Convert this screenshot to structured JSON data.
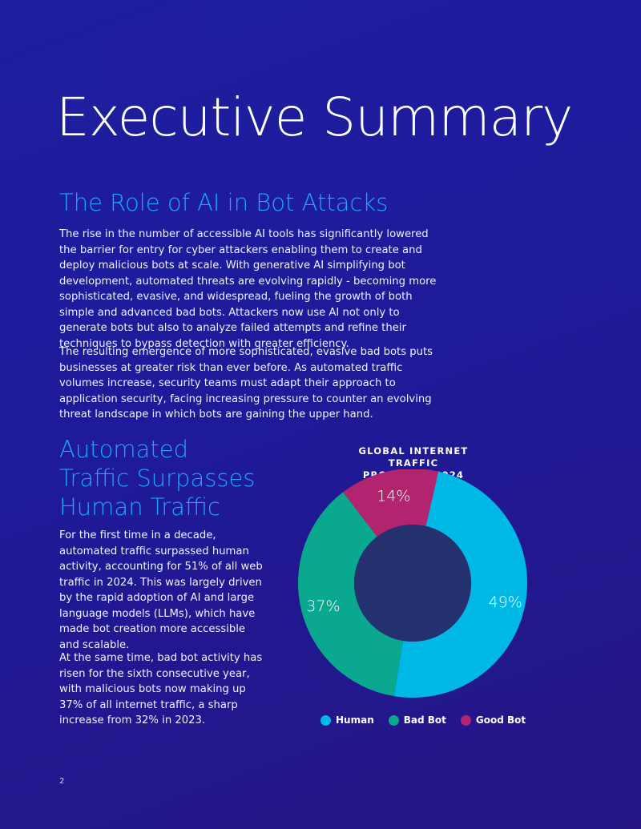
{
  "header": {
    "title": "Executive Summary"
  },
  "section1": {
    "heading": "The Role of AI in Bot Attacks",
    "p1": "The rise in the number of accessible AI tools has significantly lowered the barrier for entry for cyber attackers enabling them to create and deploy malicious bots at scale. With generative AI simplifying bot development, automated threats are evolving rapidly - becoming more sophisticated, evasive, and widespread, fueling the growth of both simple and advanced bad bots. Attackers now use AI not only to generate bots but also to analyze failed attempts and refine their techniques to bypass detection with greater efficiency.",
    "p2": "The resulting emergence of more sophisticated, evasive bad bots puts businesses at greater risk than ever before. As automated traffic volumes increase, security teams must adapt their approach to application security, facing increasing pressure to counter an evolving threat landscape in which bots are gaining the upper hand."
  },
  "section2": {
    "heading_lines": [
      "Automated",
      "Traffic Surpasses",
      "Human Traffic"
    ],
    "p1": "For the first time in a decade, automated traffic surpassed human activity, accounting for 51% of all web traffic in 2024. This was largely driven by the rapid adoption of AI and large language models (LLMs), which have made bot creation more accessible and scalable.",
    "p2": "At the same time, bad bot activity has risen for the sixth consecutive year, with malicious bots now making up 37% of all internet traffic, a sharp increase from 32% in 2023."
  },
  "chart_data": {
    "type": "pie",
    "title_lines": [
      "GLOBAL INTERNET TRAFFIC",
      "PROFILE IN 2024"
    ],
    "categories": [
      "Human",
      "Bad Bot",
      "Good Bot"
    ],
    "values": [
      49,
      37,
      14
    ],
    "labels": [
      "49%",
      "37%",
      "14%"
    ],
    "colors": [
      "#00b8e6",
      "#0aa88f",
      "#b3246e"
    ],
    "center_color": "#25306e",
    "legend_position": "bottom"
  },
  "footer": {
    "page_number": "2"
  }
}
